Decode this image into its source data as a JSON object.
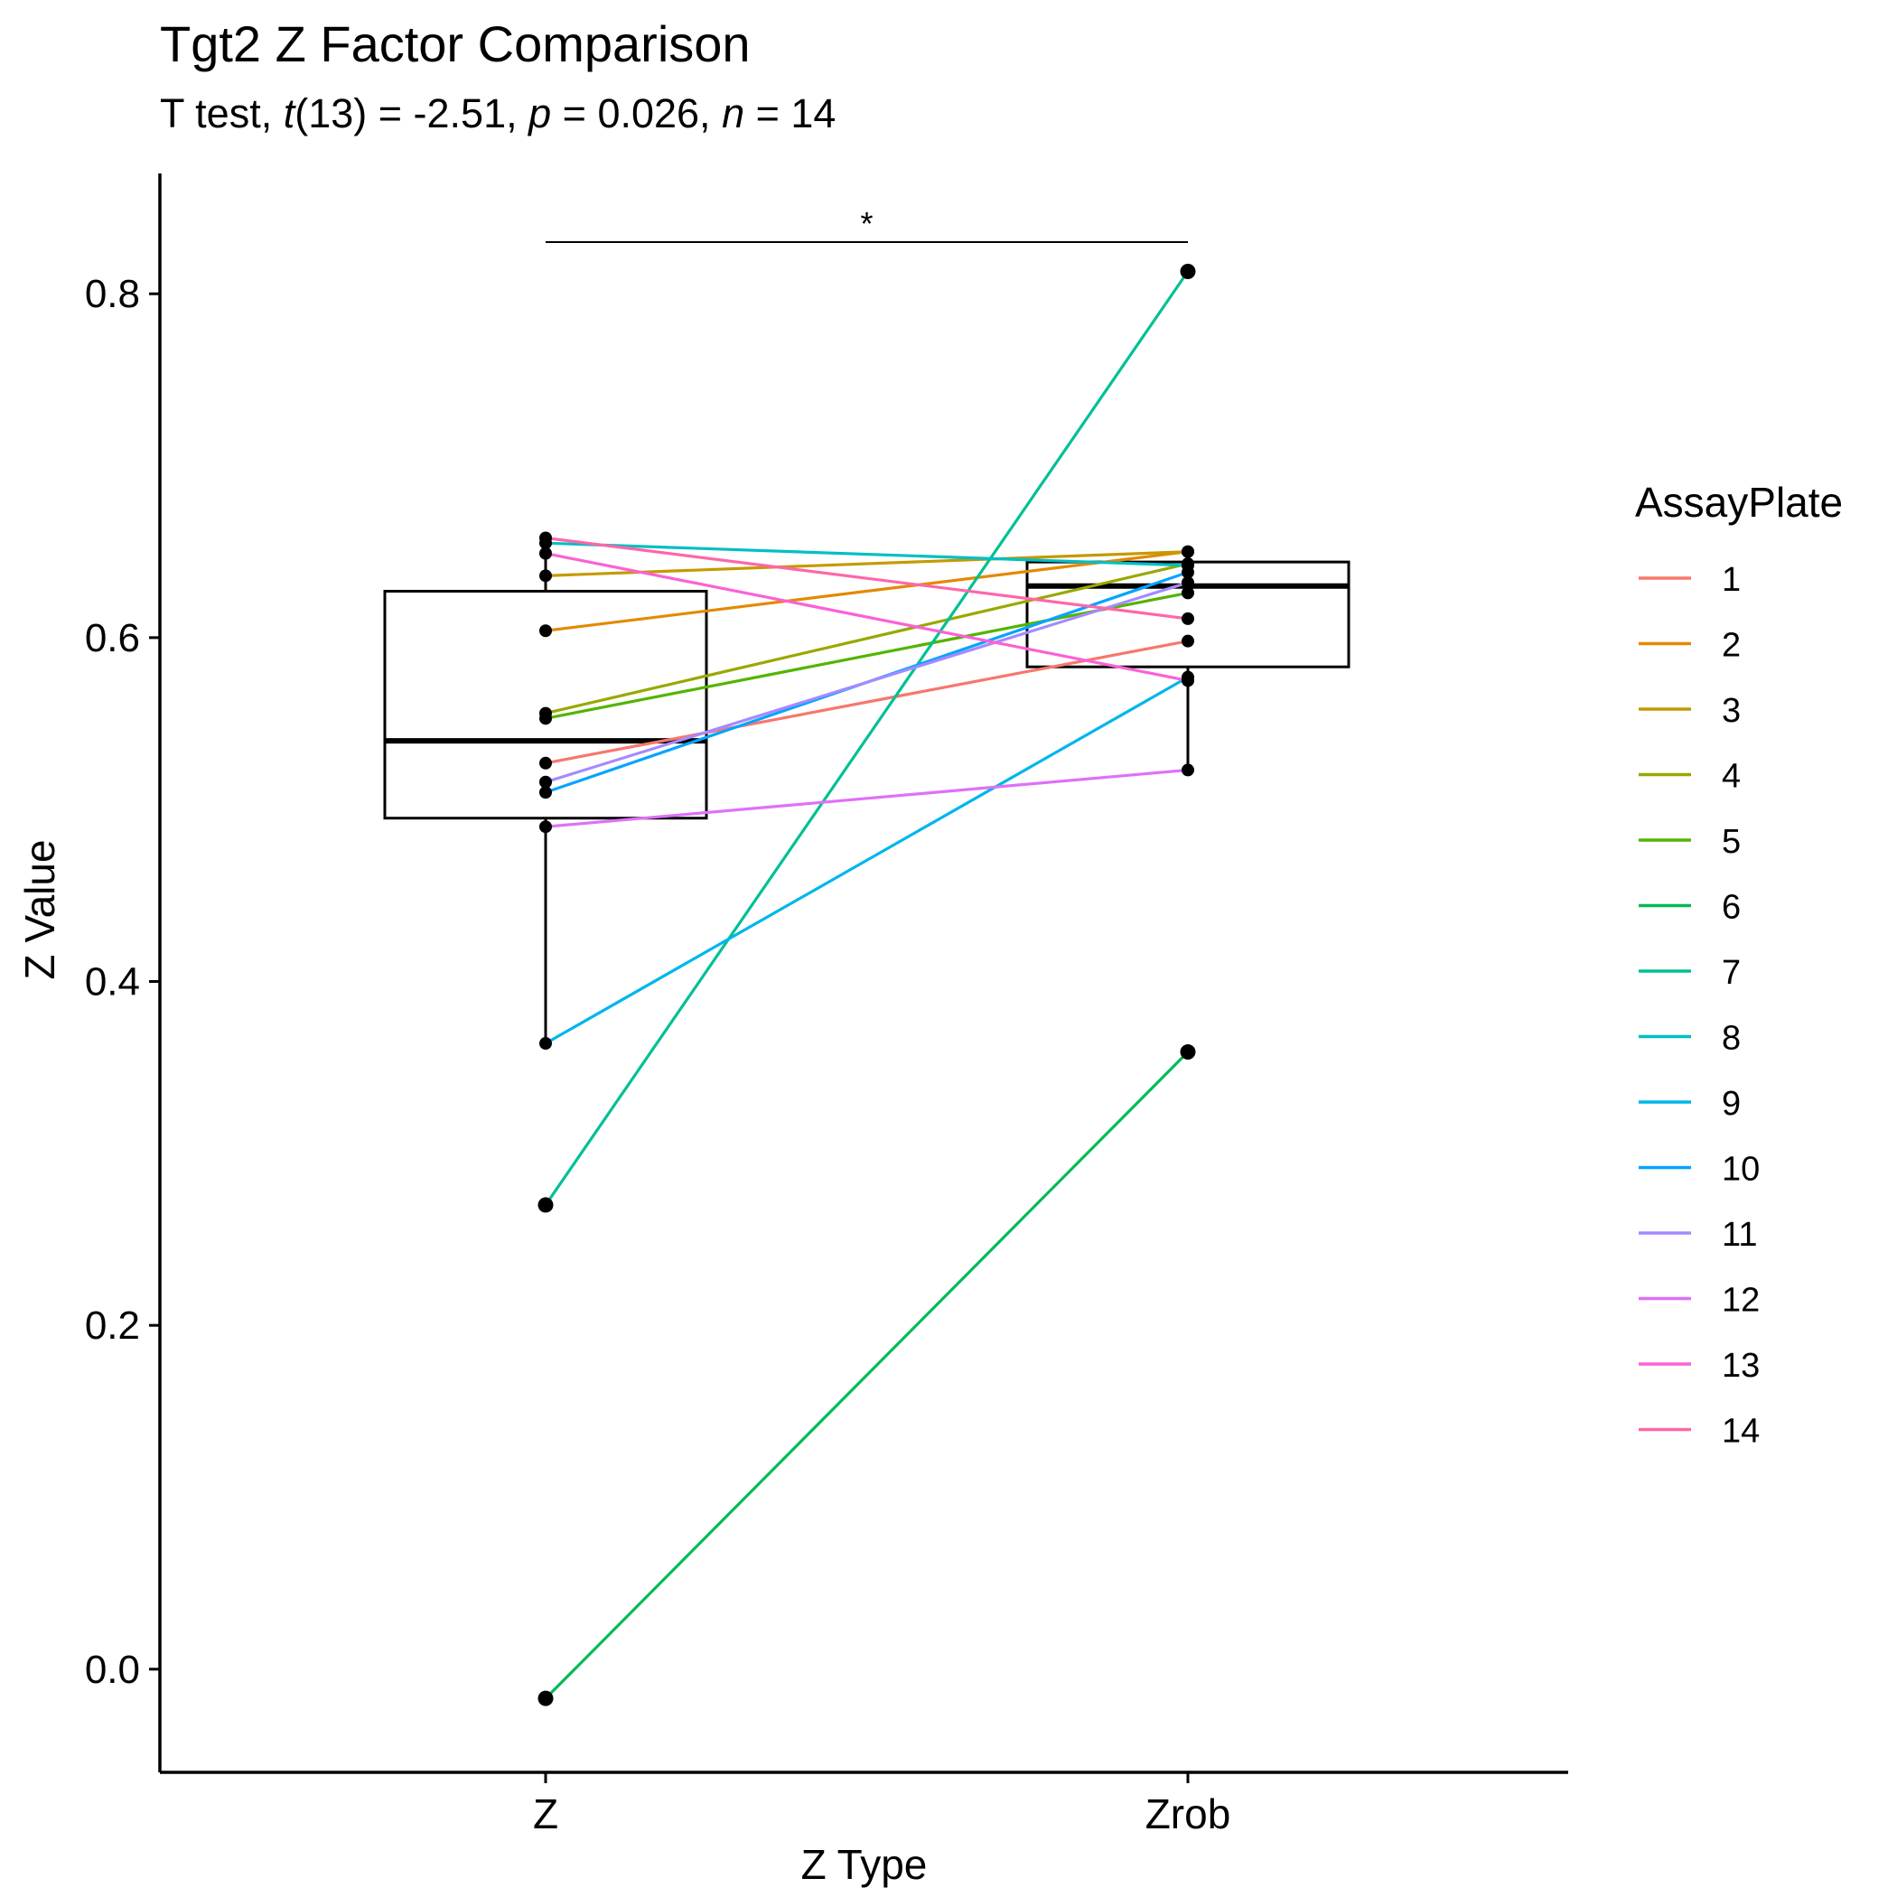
{
  "chart_data": {
    "type": "line",
    "title": "Tgt2 Z Factor Comparison",
    "subtitle": {
      "prefix": "T test, ",
      "t_symbol": "t",
      "t_args": "(13) = -2.51, ",
      "p_symbol": "p",
      "p_value": " = 0.026, ",
      "n_symbol": "n",
      "n_value": " = 14"
    },
    "xlabel": "Z Type",
    "ylabel": "Z Value",
    "categories": [
      "Z",
      "Zrob"
    ],
    "ylim": [
      -0.06,
      0.87
    ],
    "yticks": [
      0.0,
      0.2,
      0.4,
      0.6,
      0.8
    ],
    "ytick_labels": [
      "0.0",
      "0.2",
      "0.4",
      "0.6",
      "0.8"
    ],
    "significance_label": "*",
    "legend_title": "AssayPlate",
    "legend_position": "right",
    "grid": false,
    "series": [
      {
        "name": "1",
        "color": "#F8766D",
        "values": [
          0.527,
          0.598
        ]
      },
      {
        "name": "2",
        "color": "#E38900",
        "values": [
          0.604,
          0.65
        ]
      },
      {
        "name": "3",
        "color": "#C49A00",
        "values": [
          0.636,
          0.65
        ]
      },
      {
        "name": "4",
        "color": "#99A800",
        "values": [
          0.556,
          0.643
        ]
      },
      {
        "name": "5",
        "color": "#53B400",
        "values": [
          0.553,
          0.626
        ]
      },
      {
        "name": "6",
        "color": "#00BC56",
        "values": [
          -0.017,
          0.359
        ]
      },
      {
        "name": "7",
        "color": "#00C094",
        "values": [
          0.27,
          0.813
        ]
      },
      {
        "name": "8",
        "color": "#00BFC4",
        "values": [
          0.655,
          0.642
        ]
      },
      {
        "name": "9",
        "color": "#00B6EB",
        "values": [
          0.364,
          0.577
        ]
      },
      {
        "name": "10",
        "color": "#06A4FF",
        "values": [
          0.51,
          0.638
        ]
      },
      {
        "name": "11",
        "color": "#A58AFF",
        "values": [
          0.516,
          0.632
        ]
      },
      {
        "name": "12",
        "color": "#DF70F8",
        "values": [
          0.49,
          0.523
        ]
      },
      {
        "name": "13",
        "color": "#FB61D7",
        "values": [
          0.649,
          0.575
        ]
      },
      {
        "name": "14",
        "color": "#FF66A8",
        "values": [
          0.658,
          0.611
        ]
      }
    ],
    "boxplots": [
      {
        "category": "Z",
        "whisker_low": 0.364,
        "q1": 0.495,
        "median": 0.54,
        "q3": 0.627,
        "whisker_high": 0.658
      },
      {
        "category": "Zrob",
        "whisker_low": 0.523,
        "q1": 0.583,
        "median": 0.63,
        "q3": 0.644,
        "whisker_high": 0.65
      }
    ],
    "outliers": [
      {
        "category": "Z",
        "values": [
          0.27,
          -0.017
        ]
      },
      {
        "category": "Zrob",
        "values": [
          0.813,
          0.359
        ]
      }
    ]
  }
}
